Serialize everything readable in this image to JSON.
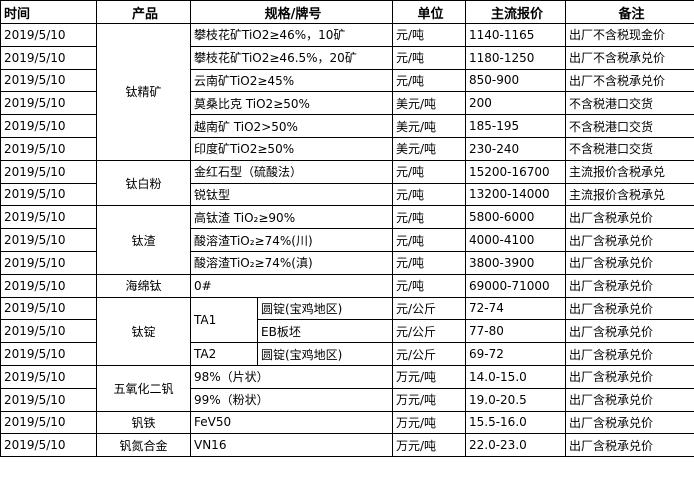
{
  "headers": [
    "时间",
    "产品",
    "规格/牌号",
    "单位",
    "主流报价",
    "备注"
  ],
  "rows": [
    {
      "date": "2019/5/10",
      "spec": "攀枝花矿TiO2≥46%，10矿",
      "unit": "元/吨",
      "price": "1140-1165",
      "note": "出厂不含税现金价"
    },
    {
      "date": "2019/5/10",
      "spec": "攀枝花矿TiO2≥46.5%，20矿",
      "unit": "元/吨",
      "price": "1180-1250",
      "note": "出厂不含税承兑价"
    },
    {
      "date": "2019/5/10",
      "spec": "云南矿TiO2≥45%",
      "unit": "元/吨",
      "price": "850-900",
      "note": "出厂不含税承兑价"
    },
    {
      "date": "2019/5/10",
      "spec": "莫桑比克 TiO2≥50%",
      "unit": "美元/吨",
      "price": "200",
      "note": "不含税港口交货"
    },
    {
      "date": "2019/5/10",
      "spec": "越南矿 TiO2>50%",
      "unit": "美元/吨",
      "price": "185-195",
      "note": "不含税港口交货"
    },
    {
      "date": "2019/5/10",
      "spec": "印度矿TiO2≥50%",
      "unit": "美元/吨",
      "price": "230-240",
      "note": "不含税港口交货"
    },
    {
      "date": "2019/5/10",
      "spec": "金红石型（硫酸法）",
      "unit": "元/吨",
      "price": "15200-16700",
      "note": "主流报价含税承兑"
    },
    {
      "date": "2019/5/10",
      "spec": "锐钛型",
      "unit": "元/吨",
      "price": "13200-14000",
      "note": "主流报价含税承兑"
    },
    {
      "date": "2019/5/10",
      "spec": "高钛渣 TiO₂≥90%",
      "unit": "元/吨",
      "price": "5800-6000",
      "note": "出厂含税承兑价"
    },
    {
      "date": "2019/5/10",
      "spec": "酸溶渣TiO₂≥74%(川)",
      "unit": "元/吨",
      "price": "4000-4100",
      "note": "出厂含税承兑价"
    },
    {
      "date": "2019/5/10",
      "spec": "酸溶渣TiO₂≥74%(滇)",
      "unit": "元/吨",
      "price": "3800-3900",
      "note": "出厂含税承兑价"
    },
    {
      "date": "2019/5/10",
      "spec": "0#",
      "unit": "元/吨",
      "price": "69000-71000",
      "note": "出厂含税承兑价"
    },
    {
      "date": "2019/5/10",
      "grade": "TA1",
      "spec": "圆锭(宝鸡地区)",
      "unit": "元/公斤",
      "price": "72-74",
      "note": "出厂含税承兑价"
    },
    {
      "date": "2019/5/10",
      "spec": "EB板坯",
      "unit": "元/公斤",
      "price": "77-80",
      "note": "出厂含税承兑价"
    },
    {
      "date": "2019/5/10",
      "grade": "TA2",
      "spec": "圆锭(宝鸡地区)",
      "unit": "元/公斤",
      "price": "69-72",
      "note": "出厂含税承兑价"
    },
    {
      "date": "2019/5/10",
      "spec": "98%（片状）",
      "unit": "万元/吨",
      "price": "14.0-15.0",
      "note": "出厂含税承兑价"
    },
    {
      "date": "2019/5/10",
      "spec": "99%（粉状）",
      "unit": "万元/吨",
      "price": "19.0-20.5",
      "note": "出厂含税承兑价"
    },
    {
      "date": "2019/5/10",
      "spec": "FeV50",
      "unit": "万元/吨",
      "price": "15.5-16.0",
      "note": "出厂含税承兑价"
    },
    {
      "date": "2019/5/10",
      "spec": "VN16",
      "unit": "万元/吨",
      "price": "22.0-23.0",
      "note": "出厂含税承兑价"
    }
  ],
  "products": [
    "钛精矿",
    "钛白粉",
    "钛渣",
    "海绵钛",
    "钛锭",
    "五氧化二钒",
    "钒铁",
    "钒氮合金"
  ]
}
